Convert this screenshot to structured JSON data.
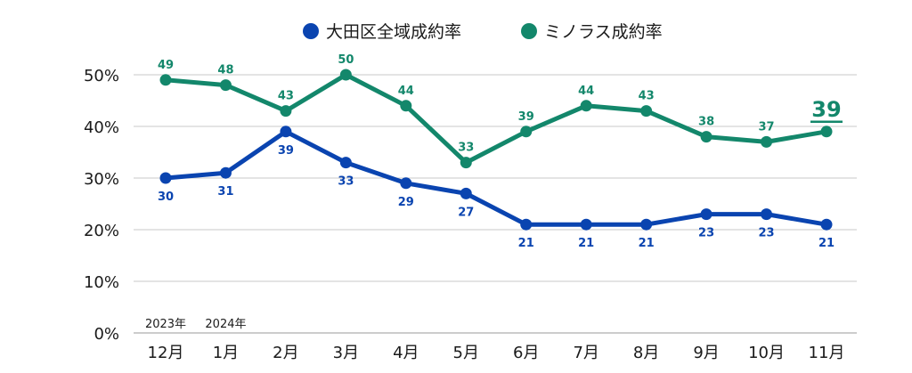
{
  "chart_data": {
    "type": "line",
    "categories": [
      "12月",
      "1月",
      "2月",
      "3月",
      "4月",
      "5月",
      "6月",
      "7月",
      "8月",
      "9月",
      "10月",
      "11月"
    ],
    "year_annotations": [
      {
        "category_index": 0,
        "text": "2023年"
      },
      {
        "category_index": 1,
        "text": "2024年"
      }
    ],
    "series": [
      {
        "name": "大田区全域成約率",
        "color": "#0a44b0",
        "values": [
          30,
          31,
          39,
          33,
          29,
          27,
          21,
          21,
          21,
          23,
          23,
          21
        ],
        "label_position": "below"
      },
      {
        "name": "ミノラス成約率",
        "color": "#13876b",
        "values": [
          49,
          48,
          43,
          50,
          44,
          33,
          39,
          44,
          43,
          38,
          37,
          39
        ],
        "label_position": "above",
        "highlight_last": true
      }
    ],
    "yticks": [
      "0%",
      "10%",
      "20%",
      "30%",
      "40%",
      "50%"
    ],
    "ylim": [
      0,
      50
    ],
    "legend_position": "top-center",
    "grid": true
  }
}
